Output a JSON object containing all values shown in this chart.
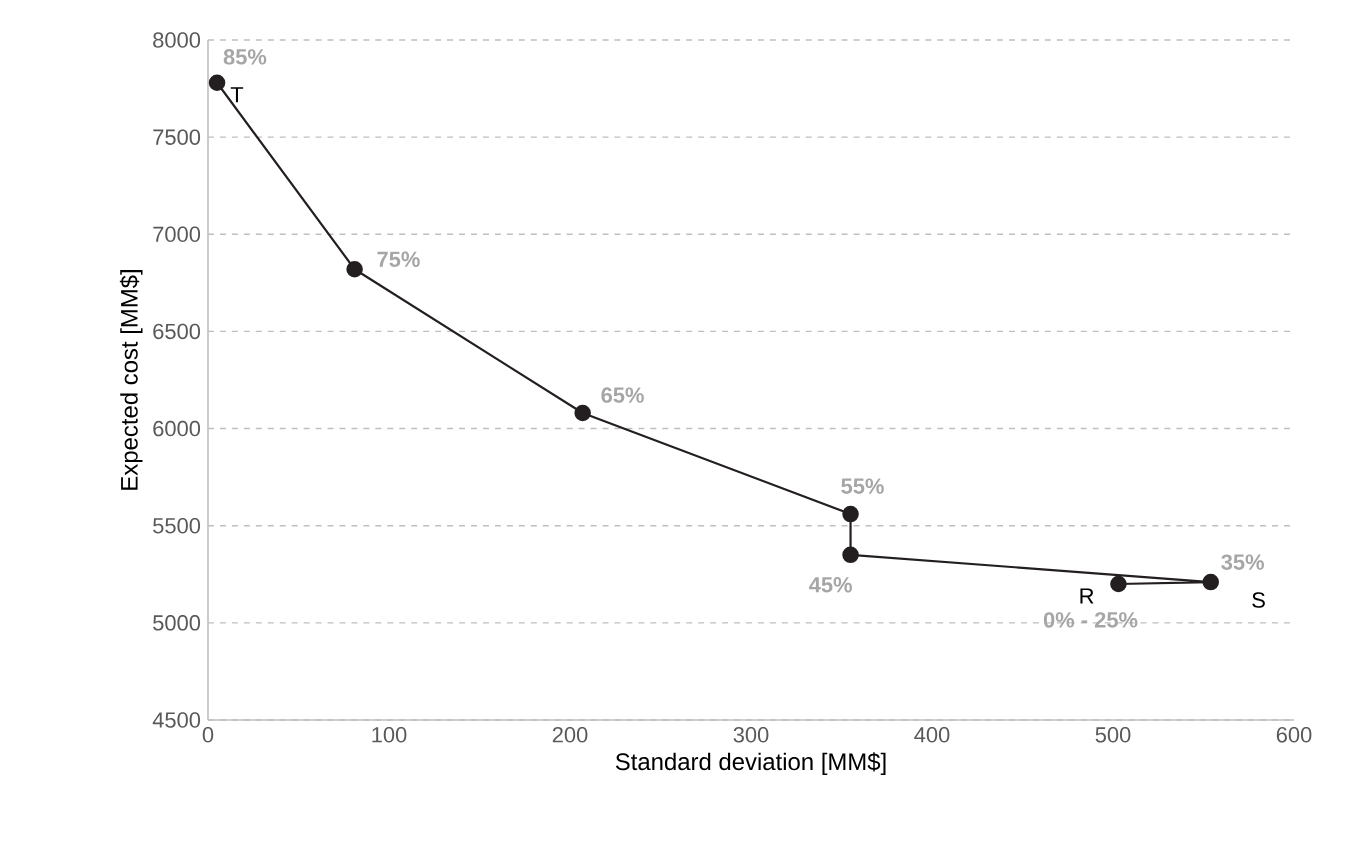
{
  "chart_data": {
    "type": "line",
    "xlabel": "Standard deviation [MM$]",
    "ylabel": "Expected cost [MM$]",
    "x": [
      5,
      81,
      207,
      355,
      355,
      554,
      503
    ],
    "series": [
      {
        "color": "#231f20",
        "values": [
          7780,
          6820,
          6080,
          5560,
          5350,
          5210,
          5200
        ]
      }
    ],
    "marker": "circle",
    "line_style": "solid",
    "grid": "y",
    "xlim": [
      0,
      600
    ],
    "xticks": [
      0,
      100,
      200,
      300,
      400,
      500,
      600
    ],
    "ylim": [
      4500,
      8000
    ],
    "yticks": [
      4500,
      5000,
      5500,
      6000,
      6500,
      7000,
      7500,
      8000
    ],
    "annotations": [
      {
        "text": "85%",
        "x": 5,
        "y": 7780
      },
      {
        "text": "T",
        "x": 5,
        "y": 7780
      },
      {
        "text": "75%",
        "x": 81,
        "y": 6820
      },
      {
        "text": "65%",
        "x": 207,
        "y": 6080
      },
      {
        "text": "55%",
        "x": 355,
        "y": 5560
      },
      {
        "text": "45%",
        "x": 355,
        "y": 5350
      },
      {
        "text": "35%",
        "x": 554,
        "y": 5210
      },
      {
        "text": "S",
        "x": 554,
        "y": 5210
      },
      {
        "text": "R",
        "x": 503,
        "y": 5200
      },
      {
        "text": "0% - 25%",
        "x": 503,
        "y": 5200
      }
    ]
  }
}
